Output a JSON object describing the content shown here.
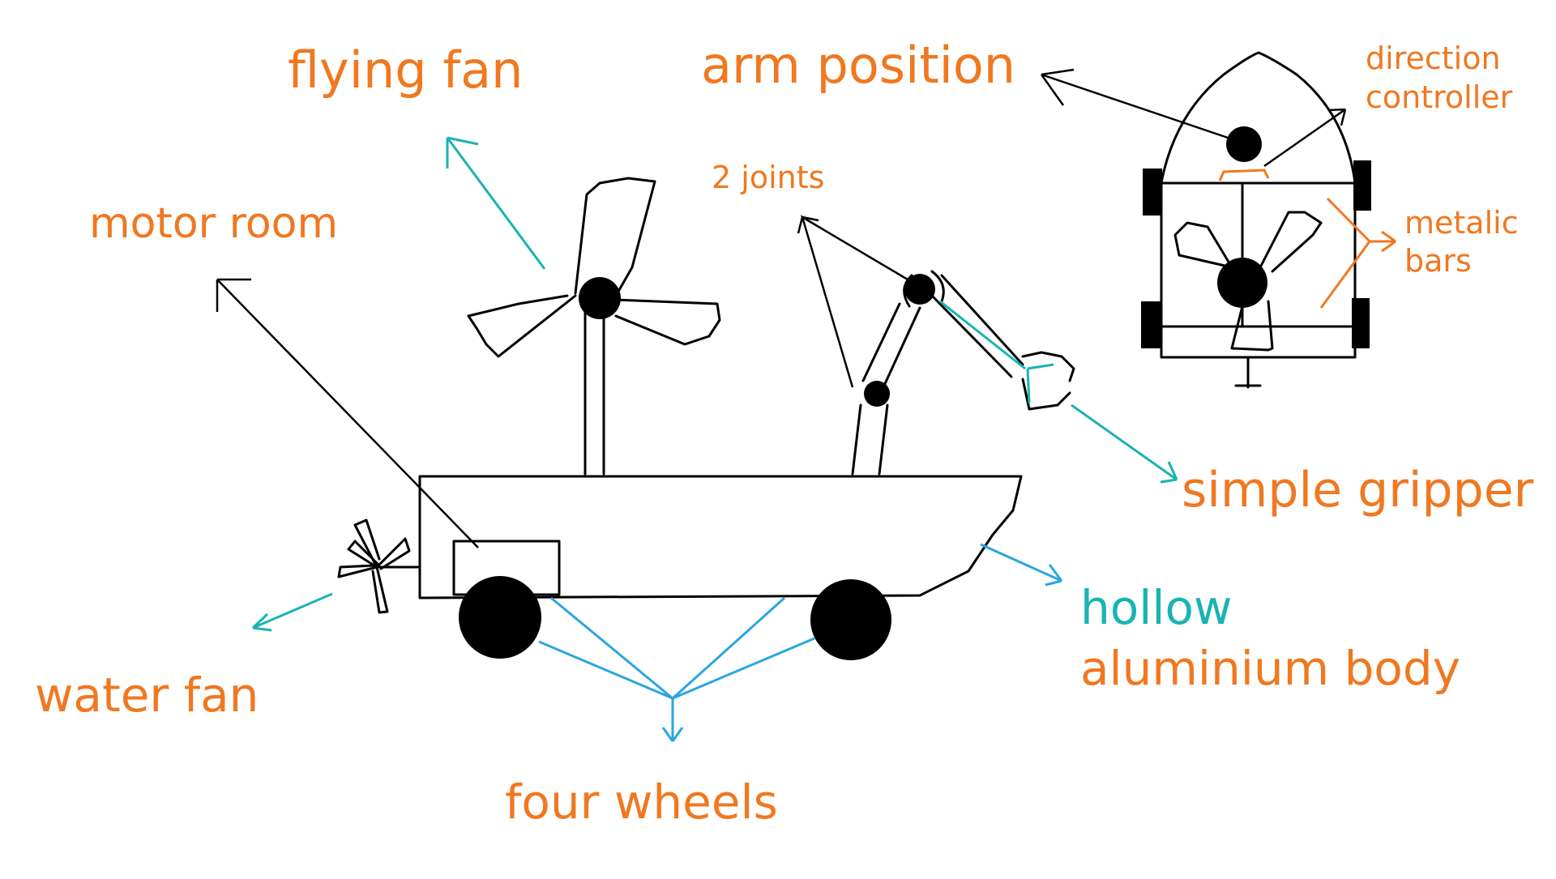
{
  "labels": {
    "flying_fan": "flying fan",
    "arm_position": "arm position",
    "direction_controller_line1": "direction",
    "direction_controller_line2": "controller",
    "two_joints": "2 joints",
    "motor_room": "motor room",
    "metalic_bars_line1": "metalic",
    "metalic_bars_line2": "bars",
    "simple_gripper": "simple gripper",
    "hollow_line1": "hollow",
    "hollow_line2": "aluminium body",
    "water_fan": "water fan",
    "four_wheels": "four wheels"
  },
  "colors": {
    "orange": "#f07820",
    "teal": "#1ab3b3",
    "blue": "#2aa6e0",
    "ink": "#000000"
  }
}
